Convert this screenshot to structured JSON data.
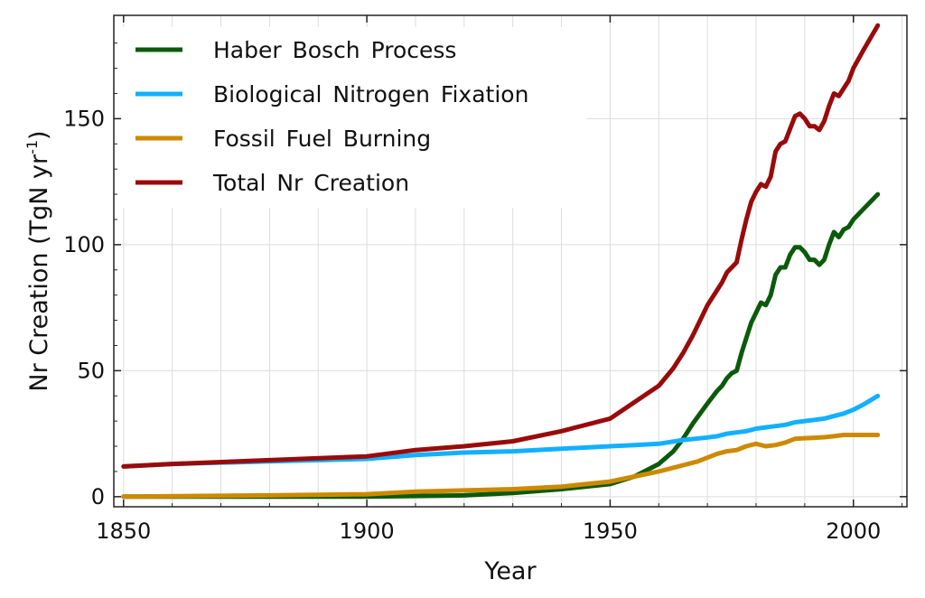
{
  "chart_data": {
    "type": "line",
    "xlabel": "Year",
    "ylabel": "Nr Creation (TgN yr",
    "ylabel_superscript": "-1",
    "ylabel_suffix": ")",
    "xlim": [
      1848,
      2011
    ],
    "ylim": [
      -4,
      191
    ],
    "xticks": [
      1850,
      1900,
      1950,
      2000
    ],
    "yticks": [
      0,
      50,
      100,
      150
    ],
    "grid": true,
    "legend_position": "top-left",
    "series": [
      {
        "name": "Haber Bosch Process",
        "color": "#0b5a0b",
        "x": [
          1850,
          1900,
          1920,
          1930,
          1940,
          1950,
          1955,
          1960,
          1963,
          1965,
          1967,
          1970,
          1972,
          1973,
          1974,
          1975,
          1976,
          1977,
          1978,
          1979,
          1980,
          1981,
          1982,
          1983,
          1984,
          1985,
          1986,
          1987,
          1988,
          1989,
          1990,
          1991,
          1992,
          1993,
          1994,
          1995,
          1996,
          1997,
          1998,
          1999,
          2000,
          2002,
          2005
        ],
        "y": [
          0,
          0,
          0.5,
          1.5,
          3,
          5,
          8,
          13,
          18,
          23,
          29,
          37,
          42,
          44,
          47,
          49,
          50,
          57,
          63,
          69,
          73,
          77,
          76,
          80,
          88,
          91,
          91,
          96,
          99,
          99,
          97,
          94,
          94,
          92,
          94,
          100,
          105,
          103,
          106,
          107,
          110,
          114,
          120
        ]
      },
      {
        "name": "Biological Nitrogen Fixation",
        "color": "#12b0ff",
        "x": [
          1850,
          1860,
          1880,
          1900,
          1910,
          1920,
          1930,
          1940,
          1950,
          1955,
          1960,
          1965,
          1970,
          1972,
          1974,
          1976,
          1978,
          1980,
          1982,
          1984,
          1986,
          1988,
          1990,
          1992,
          1994,
          1996,
          1998,
          2000,
          2002,
          2005
        ],
        "y": [
          12,
          13,
          14,
          15,
          16.5,
          17.5,
          18,
          19,
          20,
          20.5,
          21,
          22.5,
          23.5,
          24,
          25,
          25.5,
          26,
          27,
          27.5,
          28,
          28.5,
          29.5,
          30,
          30.5,
          31,
          32,
          33,
          34.5,
          36.5,
          40
        ]
      },
      {
        "name": "Fossil Fuel Burning",
        "color": "#cd8a00",
        "x": [
          1850,
          1880,
          1900,
          1910,
          1920,
          1930,
          1940,
          1950,
          1955,
          1960,
          1965,
          1968,
          1970,
          1972,
          1974,
          1976,
          1978,
          1980,
          1982,
          1984,
          1986,
          1988,
          1990,
          1992,
          1994,
          1996,
          1998,
          2000,
          2005
        ],
        "y": [
          0,
          0.5,
          1,
          2,
          2.5,
          3,
          4,
          6,
          8,
          10,
          12.5,
          14,
          15.5,
          17,
          18,
          18.5,
          20,
          21,
          20,
          20.5,
          21.5,
          23,
          23.2,
          23.4,
          23.6,
          24,
          24.5,
          24.5,
          24.5
        ]
      },
      {
        "name": "Total Nr Creation",
        "color": "#990b0b",
        "x": [
          1850,
          1860,
          1880,
          1900,
          1910,
          1920,
          1930,
          1940,
          1950,
          1955,
          1960,
          1963,
          1965,
          1967,
          1970,
          1972,
          1973,
          1974,
          1975,
          1976,
          1977,
          1978,
          1979,
          1980,
          1981,
          1982,
          1983,
          1984,
          1985,
          1986,
          1987,
          1988,
          1989,
          1990,
          1991,
          1992,
          1993,
          1994,
          1995,
          1996,
          1997,
          1998,
          1999,
          2000,
          2002,
          2005
        ],
        "y": [
          12,
          13,
          14.5,
          16,
          18.5,
          20,
          22,
          26,
          31,
          37.5,
          44,
          51,
          57,
          64,
          76,
          82,
          85,
          89,
          91,
          93,
          102,
          110,
          117,
          121,
          124,
          123,
          127,
          137,
          140,
          141,
          146,
          151,
          152,
          150,
          147,
          147,
          145.5,
          149,
          155,
          160,
          159,
          162,
          165,
          170,
          177,
          187
        ]
      }
    ]
  }
}
